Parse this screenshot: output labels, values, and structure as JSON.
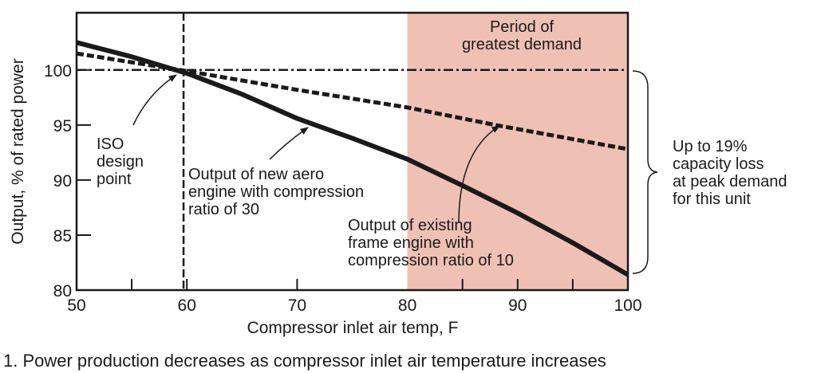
{
  "chart_data": {
    "type": "line",
    "xlabel": "Compressor inlet air temp, F",
    "ylabel": "Output, % of rated power",
    "xlim": [
      50,
      100
    ],
    "ylim": [
      80,
      105.2
    ],
    "xticks": [
      "50",
      "60",
      "70",
      "80",
      "90",
      "100"
    ],
    "yticks": [
      "80",
      "85",
      "90",
      "95",
      "100"
    ],
    "grid": false,
    "series": [
      {
        "style": "solid",
        "x": [
          50,
          55,
          60,
          65,
          70,
          75,
          80,
          85,
          90,
          95,
          100
        ],
        "y": [
          102.5,
          101.2,
          99.7,
          97.8,
          95.6,
          93.8,
          91.9,
          89.5,
          87.0,
          84.3,
          81.4
        ]
      },
      {
        "style": "dashed",
        "x": [
          50,
          60,
          70,
          80,
          88,
          100
        ],
        "y": [
          101.5,
          99.9,
          98.2,
          96.6,
          95.0,
          92.8
        ]
      },
      {
        "style": "dash-dot",
        "x": [
          50,
          100
        ],
        "y": [
          100,
          100
        ]
      }
    ],
    "iso_design_point_x": 59.7,
    "shaded_region": {
      "x": [
        80,
        100
      ],
      "color": "#efc1b5",
      "label": [
        "Period of",
        "greatest demand"
      ]
    },
    "annotations": {
      "iso": [
        "ISO",
        "design",
        "point"
      ],
      "new_aero": [
        "Output of new aero",
        "engine with compression",
        "ratio of 30"
      ],
      "existing": [
        "Output of existing",
        "frame engine with",
        "compression ratio of 10"
      ],
      "loss": [
        "Up to 19%",
        "capacity loss",
        "at peak demand",
        "for this unit"
      ]
    }
  },
  "caption": "1. Power production decreases as compressor inlet air temperature increases"
}
